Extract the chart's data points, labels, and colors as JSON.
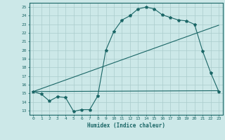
{
  "xlabel": "Humidex (Indice chaleur)",
  "background_color": "#cce8e8",
  "grid_color": "#aacccc",
  "line_color": "#1a6666",
  "xlim": [
    -0.5,
    23.5
  ],
  "ylim": [
    12.5,
    25.5
  ],
  "xticks": [
    0,
    1,
    2,
    3,
    4,
    5,
    6,
    7,
    8,
    9,
    10,
    11,
    12,
    13,
    14,
    15,
    16,
    17,
    18,
    19,
    20,
    21,
    22,
    23
  ],
  "yticks": [
    13,
    14,
    15,
    16,
    17,
    18,
    19,
    20,
    21,
    22,
    23,
    24,
    25
  ],
  "line1": {
    "x": [
      0,
      1,
      2,
      3,
      4,
      5,
      6,
      7,
      8,
      9,
      10,
      11,
      12,
      13,
      14,
      15,
      16,
      17,
      18,
      19,
      20,
      21,
      22,
      23
    ],
    "y": [
      15.2,
      14.9,
      14.1,
      14.6,
      14.5,
      12.9,
      13.1,
      13.1,
      14.7,
      20.0,
      22.2,
      23.5,
      24.0,
      24.8,
      25.0,
      24.8,
      24.1,
      23.8,
      23.5,
      23.4,
      23.0,
      19.9,
      17.4,
      15.2
    ]
  },
  "line2": {
    "x": [
      0,
      23
    ],
    "y": [
      15.2,
      22.9
    ]
  },
  "line3": {
    "x": [
      0,
      23
    ],
    "y": [
      15.2,
      15.3
    ]
  }
}
